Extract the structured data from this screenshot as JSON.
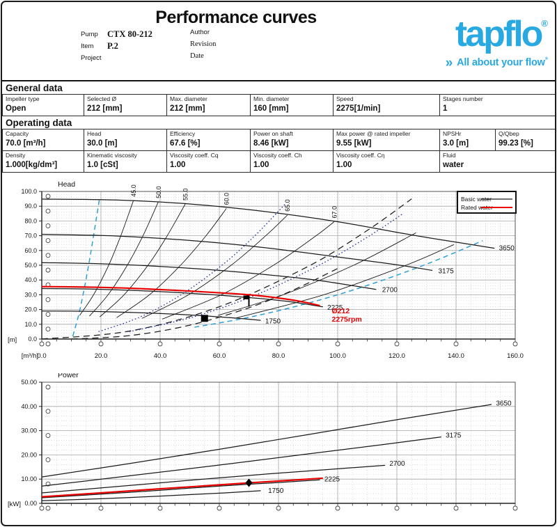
{
  "page": {
    "title": "Performance curves"
  },
  "header": {
    "fields_left": [
      {
        "label": "Pump",
        "value": "CTX 80-212"
      },
      {
        "label": "Item",
        "value": "P.2"
      },
      {
        "label": "Project",
        "value": ""
      }
    ],
    "fields_right": [
      {
        "label": "Author",
        "value": ""
      },
      {
        "label": "Revision",
        "value": ""
      },
      {
        "label": "Date",
        "value": ""
      }
    ],
    "logo": {
      "brand": "tapflo",
      "registered": "®",
      "chevrons": "»",
      "tagline": "All about your flow",
      "color": "#29a9e1"
    }
  },
  "general": {
    "heading": "General data",
    "cells": [
      {
        "label": "Impeller type",
        "value": "Open"
      },
      {
        "label": "Selected Ø",
        "value": "212 [mm]"
      },
      {
        "label": "Max. diameter",
        "value": "212 [mm]"
      },
      {
        "label": "Min. diameter",
        "value": "160 [mm]"
      },
      {
        "label": "Speed",
        "value": "2275[1/min]"
      },
      {
        "label": "Stages number",
        "value": "1"
      }
    ]
  },
  "operating": {
    "heading": "Operating data",
    "row1": [
      {
        "label": "Capacity",
        "value": "70.0 [m³/h]"
      },
      {
        "label": "Head",
        "value": "30.0 [m]"
      },
      {
        "label": "Efficiency",
        "value": "67.6 [%]"
      },
      {
        "label": "Power on shaft",
        "value": "8.46 [kW]"
      },
      {
        "label": "Max power @ rated impeller",
        "value": "9.55 [kW]"
      },
      {
        "label": "NPSHr",
        "value": "3.0 [m]"
      },
      {
        "label": "Q/Qbep",
        "value": "99.23 [%]"
      }
    ],
    "row2": [
      {
        "label": "Density",
        "value": "1.000[kg/dm³]"
      },
      {
        "label": "Kinematic viscosity",
        "value": "1.0 [cSt]"
      },
      {
        "label": "Viscosity coeff. Cq",
        "value": "1.00"
      },
      {
        "label": "Viscosity coeff. Ch",
        "value": "1.00"
      },
      {
        "label": "Viscosity coeff. Cη",
        "value": "1.00"
      },
      {
        "label": "Fluid",
        "value": "water"
      }
    ]
  },
  "chart_data": [
    {
      "type": "line",
      "title": "Head",
      "x_unit": "[m³/h]",
      "y_unit": "[m]",
      "x_range": [
        0,
        160
      ],
      "y_range": [
        0,
        100
      ],
      "grid": "on",
      "legend_position": "top-right",
      "x_tick_labels": [
        "0.0",
        "20.0",
        "40.0",
        "60.0",
        "80.0",
        "100.0",
        "120.0",
        "140.0",
        "160.0"
      ],
      "y_ticks": [
        0,
        10,
        20,
        30,
        40,
        50,
        60,
        70,
        80,
        90,
        100
      ],
      "y_tick_labels": [
        "0.0",
        "10.0",
        "20.0",
        "30.0",
        "40.0",
        "50.0",
        "60.0",
        "70.0",
        "80.0",
        "90.0",
        "100.0"
      ],
      "legend": {
        "items": [
          {
            "label": "Basic water",
            "color": "#1a1a1a"
          },
          {
            "label": "Rated water",
            "color": "#e60000"
          }
        ]
      },
      "series": [
        {
          "name": "1750",
          "rpm": 1750,
          "points": [
            [
              0,
              19
            ],
            [
              15,
              18.8
            ],
            [
              30,
              18
            ],
            [
              45,
              16.9
            ],
            [
              55,
              15.7
            ],
            [
              65,
              14.3
            ],
            [
              74,
              12.7
            ]
          ],
          "label_pos": [
            75.5,
            12.0
          ]
        },
        {
          "name": "2225",
          "rpm": 2225,
          "points": [
            [
              0,
              34.2
            ],
            [
              15,
              33.9
            ],
            [
              30,
              33
            ],
            [
              45,
              31.6
            ],
            [
              60,
              29.7
            ],
            [
              75,
              27.2
            ],
            [
              85,
              25
            ],
            [
              95,
              21.8
            ]
          ],
          "label_pos": [
            96.5,
            21.2
          ]
        },
        {
          "name": "2700",
          "rpm": 2700,
          "points": [
            [
              0,
              51.8
            ],
            [
              20,
              51
            ],
            [
              40,
              49.2
            ],
            [
              60,
              46.5
            ],
            [
              80,
              42.8
            ],
            [
              95,
              39.3
            ],
            [
              113,
              33.6
            ]
          ],
          "label_pos": [
            115,
            33.2
          ]
        },
        {
          "name": "3175",
          "rpm": 3175,
          "points": [
            [
              0,
              71
            ],
            [
              25,
              69.8
            ],
            [
              50,
              66.8
            ],
            [
              75,
              62
            ],
            [
              100,
              55.6
            ],
            [
              120,
              50.3
            ],
            [
              132,
              46.5
            ]
          ],
          "label_pos": [
            134,
            46
          ]
        },
        {
          "name": "3650",
          "rpm": 3650,
          "points": [
            [
              0,
              94.8
            ],
            [
              25,
              94.2
            ],
            [
              50,
              91.5
            ],
            [
              75,
              86.5
            ],
            [
              100,
              79.5
            ],
            [
              125,
              70.5
            ],
            [
              153,
              61.5
            ]
          ],
          "label_pos": [
            154.5,
            61.5
          ]
        }
      ],
      "rated": {
        "name": "Rated impeller Ø212 at 2275 rpm",
        "color": "#e60000",
        "points": [
          [
            0,
            35.5
          ],
          [
            15,
            35.2
          ],
          [
            30,
            34.4
          ],
          [
            45,
            33
          ],
          [
            57,
            31.7
          ],
          [
            70,
            30
          ],
          [
            80,
            27.8
          ],
          [
            88,
            25.3
          ],
          [
            94,
            22.6
          ]
        ],
        "annotation": [
          "Ø212",
          "2275rpm"
        ],
        "annotation_pos": [
          98,
          17.5
        ]
      },
      "efficiency": [
        {
          "label": "45.0",
          "points": [
            [
              12.8,
              16
            ],
            [
              17.5,
              30
            ],
            [
              22.6,
              50
            ],
            [
              26.7,
              70
            ],
            [
              31,
              94
            ]
          ]
        },
        {
          "label": "50.0",
          "points": [
            [
              16.1,
              15.5
            ],
            [
              22.4,
              30
            ],
            [
              28.9,
              50
            ],
            [
              34.2,
              70
            ],
            [
              39.4,
              93
            ]
          ]
        },
        {
          "label": "55.0",
          "points": [
            [
              19.6,
              15
            ],
            [
              27.8,
              30
            ],
            [
              35.9,
              50
            ],
            [
              42.4,
              70
            ],
            [
              48.5,
              91.5
            ]
          ]
        },
        {
          "label": "60.0",
          "points": [
            [
              25.3,
              14.5
            ],
            [
              36.4,
              30
            ],
            [
              46.9,
              50
            ],
            [
              55.5,
              70
            ],
            [
              62.4,
              88.5
            ]
          ]
        },
        {
          "label": "65.0",
          "points": [
            [
              33.9,
              14
            ],
            [
              49.6,
              30
            ],
            [
              64,
              50
            ],
            [
              75.7,
              70
            ],
            [
              83,
              84
            ]
          ]
        },
        {
          "label": "67.0",
          "points": [
            [
              40.7,
              13.5
            ],
            [
              60.7,
              30
            ],
            [
              78.3,
              50
            ],
            [
              92.7,
              70
            ],
            [
              98.8,
              79.5
            ]
          ]
        },
        {
          "label": "",
          "points": [
            [
              59.6,
              16
            ],
            [
              81.6,
              30
            ],
            [
              105.4,
              50
            ],
            [
              126.5,
              72
            ]
          ]
        },
        {
          "label": "",
          "points": [
            [
              65.1,
              14
            ],
            [
              95.3,
              30
            ],
            [
              123.1,
              50
            ],
            [
              139.3,
              64
            ]
          ]
        }
      ],
      "guides": [
        {
          "style": "dash-black",
          "points": [
            [
              0,
              0
            ],
            [
              30,
              5.5
            ],
            [
              60,
              21.9
            ],
            [
              90,
              49.2
            ],
            [
              110,
              73.6
            ],
            [
              125,
              95
            ]
          ]
        },
        {
          "style": "dash-black",
          "points": [
            [
              10,
              0
            ],
            [
              30,
              2.4
            ],
            [
              50,
              9.4
            ],
            [
              70,
              21.2
            ],
            [
              85,
              33.2
            ],
            [
              100,
              47.8
            ]
          ]
        },
        {
          "style": "dash-cyan",
          "points": [
            [
              10.5,
              2
            ],
            [
              13,
              21
            ],
            [
              16,
              52
            ],
            [
              19.5,
              95
            ]
          ]
        },
        {
          "style": "dash-cyan",
          "points": [
            [
              51.6,
              8
            ],
            [
              70,
              14.7
            ],
            [
              90,
              24.3
            ],
            [
              110,
              36.3
            ],
            [
              130,
              50.7
            ],
            [
              149,
              66.6
            ]
          ]
        },
        {
          "style": "dot-navy",
          "points": [
            [
              19.2,
              5
            ],
            [
              33.3,
              15
            ],
            [
              47.1,
              30
            ],
            [
              60.9,
              50
            ],
            [
              72,
              70
            ],
            [
              82.5,
              92
            ]
          ]
        },
        {
          "style": "dot-navy",
          "points": [
            [
              29.6,
              5
            ],
            [
              51.3,
              15
            ],
            [
              72.5,
              30
            ],
            [
              93.7,
              50
            ],
            [
              110.8,
              70
            ],
            [
              122.1,
              85
            ]
          ]
        }
      ],
      "markers": [
        {
          "shape": "square",
          "at": [
            55,
            14
          ]
        },
        {
          "shape": "flag",
          "at": [
            70,
            29.5
          ]
        }
      ],
      "duty_point": {
        "capacity_m3h": 70.0,
        "head_m": 30.0
      }
    },
    {
      "type": "line",
      "title": "Power",
      "y_unit": "[kW]",
      "x_range": [
        0,
        160
      ],
      "y_range": [
        0,
        50
      ],
      "grid": "on",
      "y_ticks": [
        0,
        10,
        20,
        30,
        40,
        50
      ],
      "y_tick_labels": [
        "0.00",
        "10.00",
        "20.00",
        "30.00",
        "40.00",
        "50.00"
      ],
      "series": [
        {
          "name": "1750",
          "rpm": 1750,
          "points": [
            [
              0,
              1.1
            ],
            [
              20,
              1.9
            ],
            [
              40,
              3
            ],
            [
              60,
              4.2
            ],
            [
              74,
              5.2
            ]
          ],
          "label_pos": [
            76.5,
            5.2
          ]
        },
        {
          "name": "2225",
          "rpm": 2225,
          "points": [
            [
              0,
              2.3
            ],
            [
              20,
              3.8
            ],
            [
              40,
              5.4
            ],
            [
              60,
              7.1
            ],
            [
              80,
              8.6
            ],
            [
              94,
              9.7
            ]
          ],
          "label_pos": [
            95.5,
            9.9
          ]
        },
        {
          "name": "2700",
          "rpm": 2700,
          "points": [
            [
              0,
              4.3
            ],
            [
              25,
              6.9
            ],
            [
              50,
              9.5
            ],
            [
              75,
              12
            ],
            [
              95,
              13.8
            ],
            [
              116,
              15.7
            ]
          ],
          "label_pos": [
            117.5,
            16.4
          ]
        },
        {
          "name": "3175",
          "rpm": 3175,
          "points": [
            [
              0,
              7.1
            ],
            [
              30,
              11.4
            ],
            [
              60,
              15.8
            ],
            [
              90,
              20.4
            ],
            [
              115,
              24.2
            ],
            [
              135,
              27.4
            ]
          ],
          "label_pos": [
            136.5,
            28
          ]
        },
        {
          "name": "3650",
          "rpm": 3650,
          "points": [
            [
              0,
              10.9
            ],
            [
              30,
              16.5
            ],
            [
              60,
              22.3
            ],
            [
              90,
              28.4
            ],
            [
              120,
              34.5
            ],
            [
              152,
              40.8
            ]
          ],
          "label_pos": [
            153.5,
            41.3
          ]
        }
      ],
      "rated": {
        "name": "Rated impeller Ø212 at 2275 rpm",
        "color": "#e60000",
        "points": [
          [
            0,
            2.7
          ],
          [
            20,
            4.3
          ],
          [
            40,
            6
          ],
          [
            55,
            7.2
          ],
          [
            70,
            8.46
          ],
          [
            85,
            9.6
          ],
          [
            95,
            10.4
          ]
        ]
      },
      "markers": [
        {
          "shape": "diamond",
          "at": [
            70,
            8.46
          ]
        }
      ],
      "duty_point": {
        "capacity_m3h": 70.0,
        "power_kW": 8.46
      }
    }
  ]
}
